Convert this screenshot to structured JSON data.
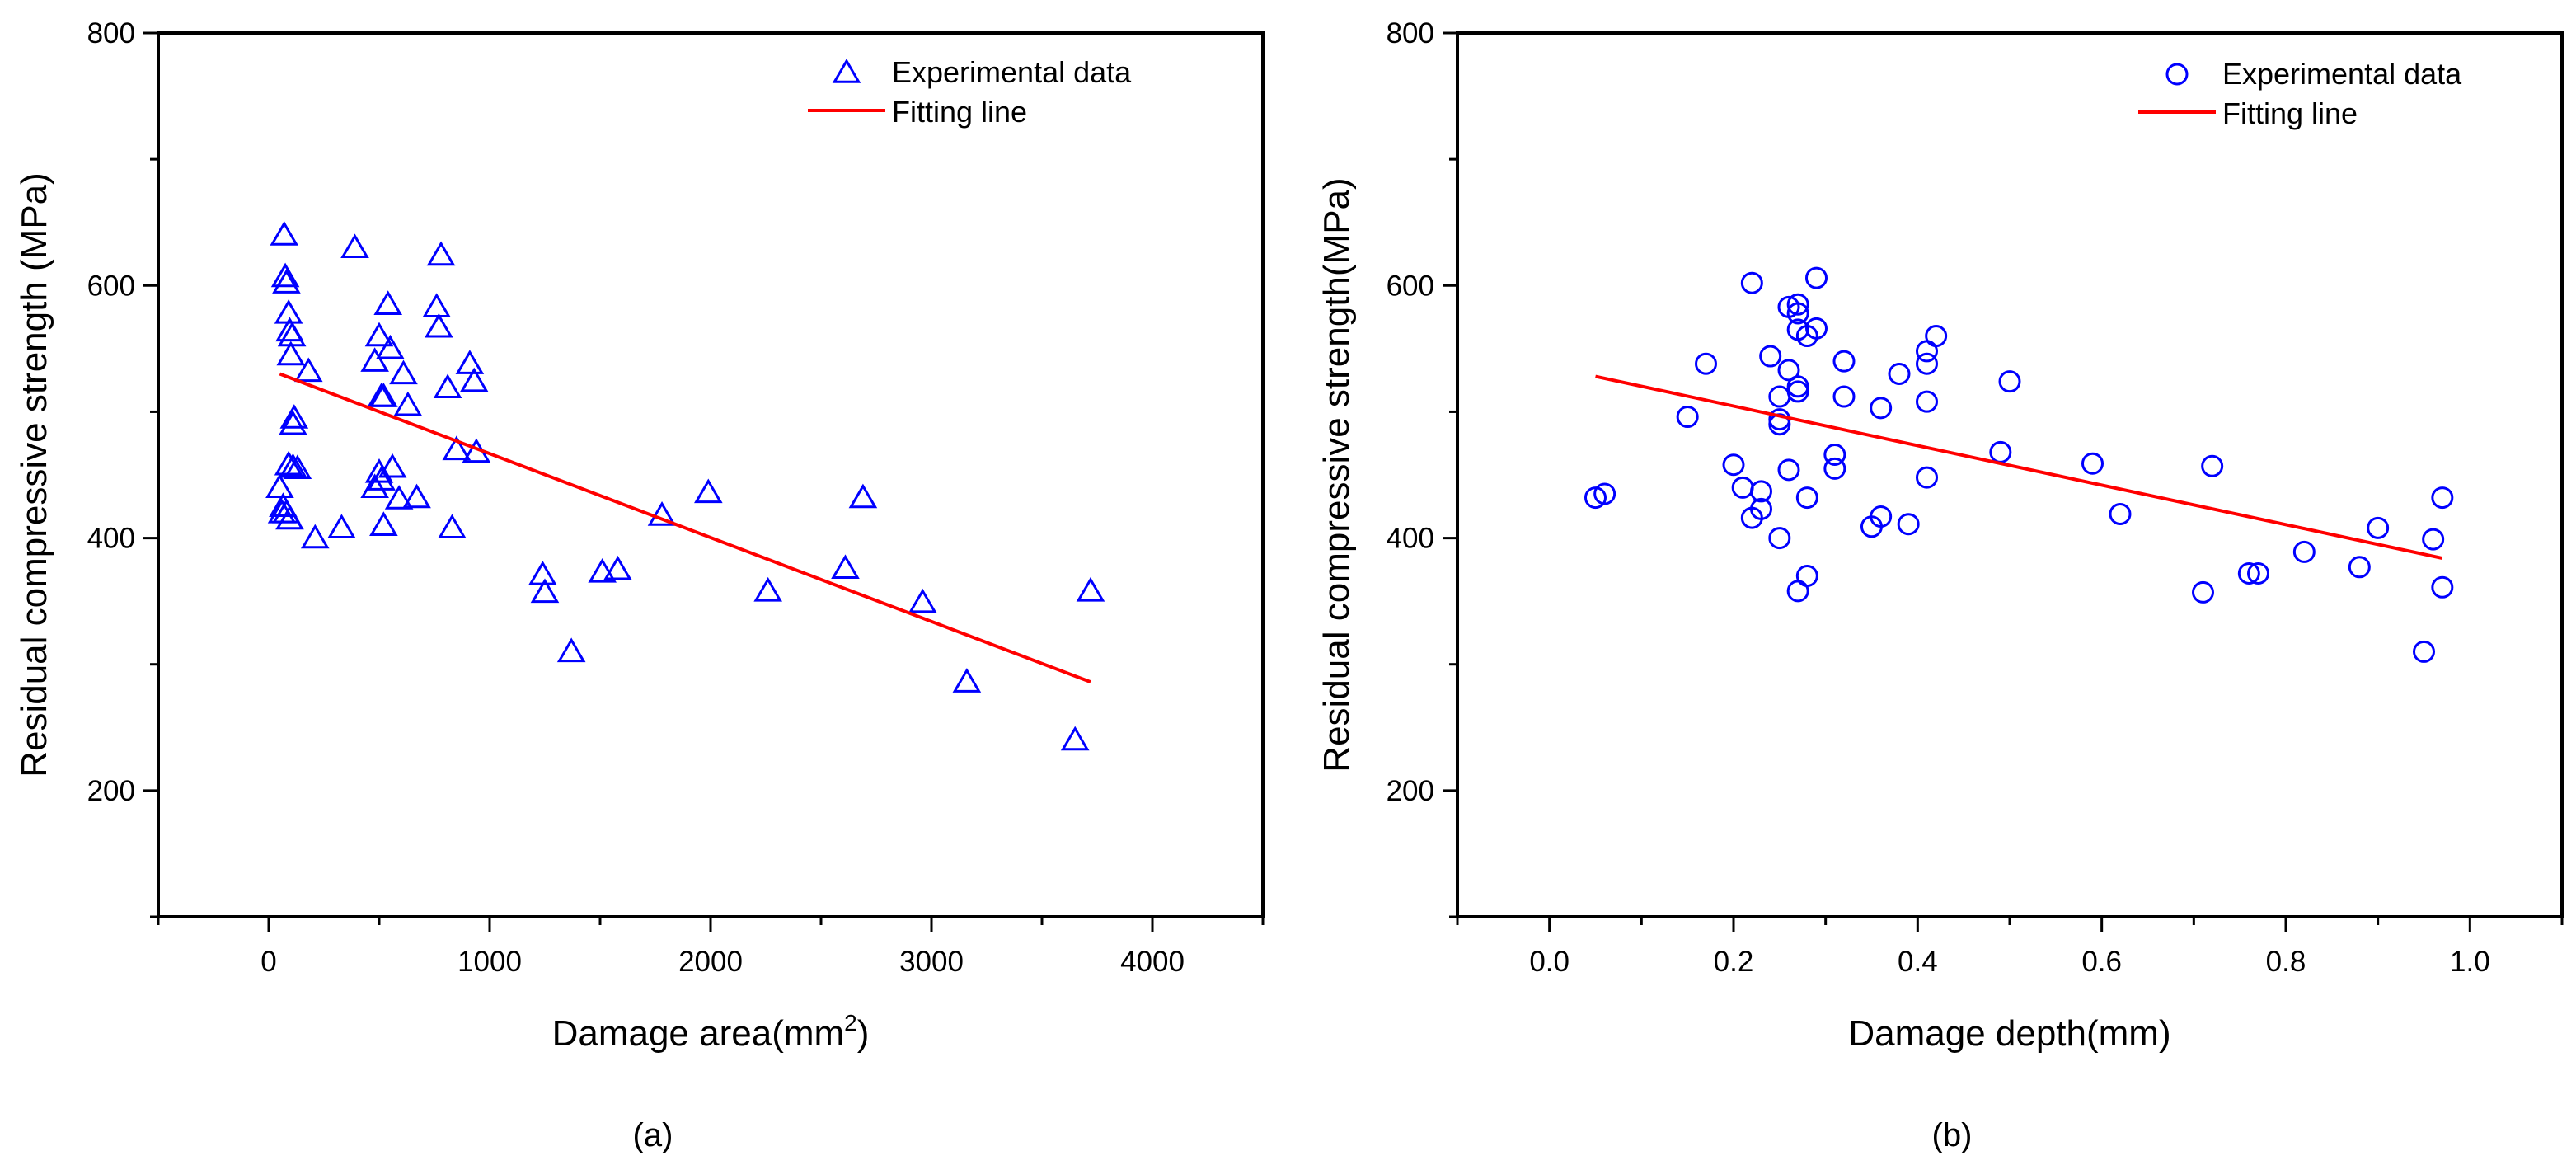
{
  "chart_data": [
    {
      "type": "scatter",
      "panel_label": "(a)",
      "xlabel": "Damage area(mm",
      "xlabel_sup": "2",
      "xlabel_tail": ")",
      "ylabel": "Residual compressive strength (MPa)",
      "xlim": [
        -500,
        4500
      ],
      "ylim": [
        100,
        800
      ],
      "xticks": [
        0,
        1000,
        2000,
        3000,
        4000
      ],
      "xtick_labels": [
        "0",
        "1000",
        "2000",
        "3000",
        "4000"
      ],
      "yticks": [
        200,
        400,
        600,
        800
      ],
      "ytick_labels": [
        "200",
        "400",
        "600",
        "800"
      ],
      "legend_position": "top-right",
      "marker": "triangle",
      "colors": {
        "points": "#0000ff",
        "fit": "#ff0000",
        "axes": "#000000"
      },
      "legend": [
        {
          "label": "Experimental data",
          "kind": "marker"
        },
        {
          "label": "Fitting line",
          "kind": "line"
        }
      ],
      "series": [
        {
          "name": "Experimental data",
          "x": [
            70,
            75,
            80,
            90,
            95,
            100,
            105,
            110,
            115,
            130,
            180,
            60,
            65,
            80,
            90,
            50,
            95,
            110,
            210,
            330,
            390,
            480,
            500,
            510,
            520,
            540,
            550,
            560,
            500,
            520,
            480,
            510,
            590,
            610,
            630,
            670,
            760,
            770,
            780,
            810,
            830,
            850,
            910,
            930,
            940,
            1240,
            1250,
            1370,
            1510,
            1580,
            1780,
            1990,
            2260,
            2610,
            2690,
            2960,
            3160,
            3650,
            3720
          ],
          "y": [
            640,
            607,
            602,
            578,
            564,
            545,
            560,
            490,
            495,
            455,
            532,
            420,
            425,
            420,
            458,
            440,
            415,
            456,
            400,
            408,
            630,
            540,
            560,
            512,
            512,
            585,
            550,
            456,
            452,
            410,
            440,
            446,
            431,
            530,
            505,
            432,
            583,
            567,
            624,
            519,
            408,
            470,
            538,
            524,
            468,
            371,
            357,
            310,
            373,
            375,
            418,
            436,
            358,
            376,
            432,
            349,
            286,
            240,
            358
          ]
        },
        {
          "name": "Fitting line",
          "x": [
            50,
            3720
          ],
          "y": [
            530,
            286
          ]
        }
      ]
    },
    {
      "type": "scatter",
      "panel_label": "(b)",
      "xlabel": "Damage depth(mm)",
      "ylabel": "Residual compressive strength(MPa)",
      "xlim": [
        -0.1,
        1.1
      ],
      "ylim": [
        100,
        800
      ],
      "xticks": [
        0.0,
        0.2,
        0.4,
        0.6,
        0.8,
        1.0
      ],
      "xtick_labels": [
        "0.0",
        "0.2",
        "0.4",
        "0.6",
        "0.8",
        "1.0"
      ],
      "yticks": [
        200,
        400,
        600,
        800
      ],
      "ytick_labels": [
        "200",
        "400",
        "600",
        "800"
      ],
      "legend_position": "top-right",
      "marker": "circle",
      "colors": {
        "points": "#0000ff",
        "fit": "#ff0000",
        "axes": "#000000"
      },
      "legend": [
        {
          "label": "Experimental data",
          "kind": "marker"
        },
        {
          "label": "Fitting line",
          "kind": "line"
        }
      ],
      "series": [
        {
          "name": "Experimental data",
          "x": [
            0.05,
            0.06,
            0.15,
            0.17,
            0.2,
            0.21,
            0.22,
            0.22,
            0.23,
            0.23,
            0.24,
            0.25,
            0.25,
            0.25,
            0.25,
            0.26,
            0.26,
            0.26,
            0.27,
            0.27,
            0.27,
            0.27,
            0.27,
            0.27,
            0.28,
            0.28,
            0.28,
            0.29,
            0.29,
            0.31,
            0.31,
            0.32,
            0.32,
            0.35,
            0.36,
            0.36,
            0.38,
            0.39,
            0.41,
            0.41,
            0.41,
            0.41,
            0.42,
            0.49,
            0.5,
            0.59,
            0.62,
            0.71,
            0.72,
            0.76,
            0.77,
            0.82,
            0.88,
            0.9,
            0.95,
            0.96,
            0.97,
            0.97
          ],
          "y": [
            432,
            435,
            496,
            538,
            458,
            440,
            602,
            416,
            437,
            423,
            544,
            512,
            490,
            494,
            400,
            454,
            533,
            583,
            585,
            578,
            565,
            520,
            516,
            358,
            560,
            432,
            370,
            606,
            566,
            466,
            455,
            540,
            512,
            409,
            503,
            417,
            530,
            411,
            508,
            538,
            548,
            448,
            560,
            468,
            524,
            459,
            419,
            357,
            457,
            372,
            372,
            389,
            377,
            408,
            310,
            399,
            361,
            432
          ]
        },
        {
          "name": "Fitting line",
          "x": [
            0.05,
            0.97
          ],
          "y": [
            528,
            384
          ]
        }
      ]
    }
  ]
}
